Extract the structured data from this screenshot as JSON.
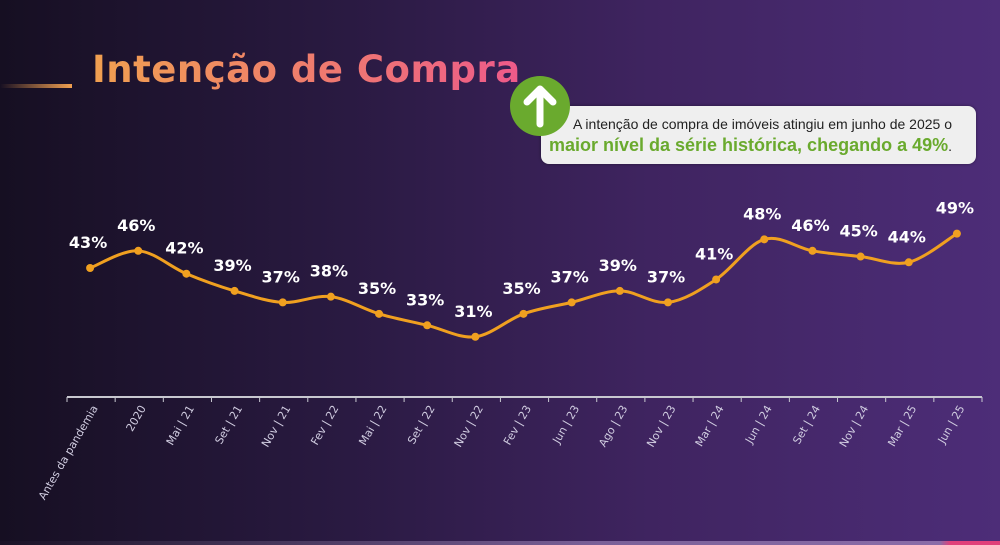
{
  "header": {
    "title": "Intenção de Compra"
  },
  "callout": {
    "icon": "arrow-up-icon",
    "text": "A intenção de compra de imóveis atingiu em junho de 2025 o ",
    "highlight": "maior nível da série histórica, chegando a 49%",
    "end": "."
  },
  "colors": {
    "line": "#f0a020",
    "highlight": "#6aaa2e",
    "labels": "#ffffff"
  },
  "chart_data": {
    "type": "line",
    "categories": [
      "Antes da pandemia",
      "2020",
      "Mai | 21",
      "Set | 21",
      "Nov | 21",
      "Fev | 22",
      "Mai | 22",
      "Set | 22",
      "Nov | 22",
      "Fev | 23",
      "Jun | 23",
      "Ago | 23",
      "Nov | 23",
      "Mar | 24",
      "Jun | 24",
      "Set | 24",
      "Nov | 24",
      "Mar | 25",
      "Jun | 25"
    ],
    "values": [
      43,
      46,
      42,
      39,
      37,
      38,
      35,
      33,
      31,
      35,
      37,
      39,
      37,
      41,
      48,
      46,
      45,
      44,
      49
    ],
    "data_labels": [
      "43%",
      "46%",
      "42%",
      "39%",
      "37%",
      "38%",
      "35%",
      "33%",
      "31%",
      "35%",
      "37%",
      "39%",
      "37%",
      "41%",
      "48%",
      "46%",
      "45%",
      "44%",
      "49%"
    ],
    "unit": "%",
    "grid": false,
    "legend": "none"
  }
}
